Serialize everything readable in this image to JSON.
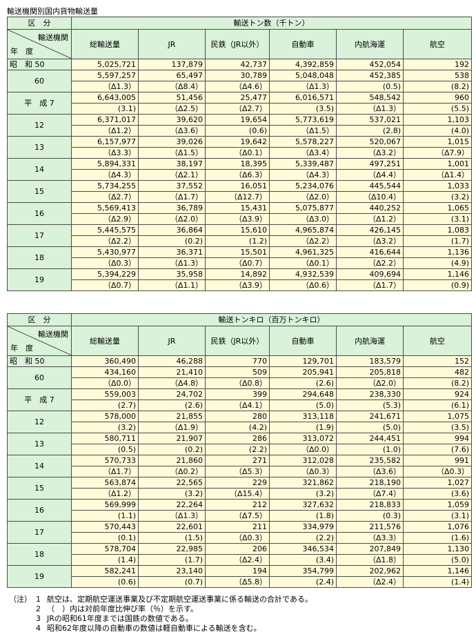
{
  "title": "輸送機関別国内貨物輸送量",
  "corner": {
    "kubun": "区　分",
    "kikan": "輸送機関",
    "nendo": "年　度"
  },
  "columns": [
    "総輸送量",
    "JR",
    "民鉄（JR以外）",
    "自動車",
    "内航海運",
    "航空"
  ],
  "tables": [
    {
      "group_header": "輸送トン数（千トン）",
      "rows": [
        {
          "year": "昭　和 50",
          "values": [
            "5,025,721",
            "137,879",
            "42,737",
            "4,392,859",
            "452,054",
            "192"
          ]
        },
        {
          "year": "60",
          "values": [
            "5,597,257",
            "65,497",
            "30,789",
            "5,048,048",
            "452,385",
            "538"
          ],
          "changes": [
            "（Δ1.3）",
            "（Δ8.4）",
            "（Δ4.6）",
            "（Δ1.3）",
            "(0.5)",
            "(8.2)"
          ]
        },
        {
          "year": "平　成 7",
          "values": [
            "6,643,005",
            "51,456",
            "25,477",
            "6,016,571",
            "548,542",
            "960"
          ],
          "changes": [
            "(3.1)",
            "（Δ2.5）",
            "（Δ2.7）",
            "(3.5)",
            "（Δ1.3）",
            "(5.5)"
          ]
        },
        {
          "year": "12",
          "values": [
            "6,371,017",
            "39,620",
            "19,654",
            "5,773,619",
            "537,021",
            "1,103"
          ],
          "changes": [
            "（Δ1.2）",
            "（Δ3.6）",
            "(0.6)",
            "（Δ1.5）",
            "(2.8)",
            "(4.0)"
          ]
        },
        {
          "year": "13",
          "values": [
            "6,157,977",
            "39,026",
            "19,642",
            "5,578,227",
            "520,067",
            "1,015"
          ],
          "changes": [
            "（Δ3.3）",
            "（Δ1.5）",
            "（Δ0.1）",
            "（Δ3.4）",
            "（Δ3.2）",
            "（Δ7.9）"
          ]
        },
        {
          "year": "14",
          "values": [
            "5,894,331",
            "38,197",
            "18,395",
            "5,339,487",
            "497,251",
            "1,001"
          ],
          "changes": [
            "（Δ4.3）",
            "（Δ2.1）",
            "（Δ6.3）",
            "（Δ4.3）",
            "（Δ4.4）",
            "（Δ1.4）"
          ]
        },
        {
          "year": "15",
          "values": [
            "5,734,255",
            "37,552",
            "16,051",
            "5,234,076",
            "445,544",
            "1,033"
          ],
          "changes": [
            "（Δ2.7）",
            "（Δ1.7）",
            "（Δ12.7）",
            "（Δ2.0）",
            "（Δ10.4）",
            "(3.2)"
          ]
        },
        {
          "year": "16",
          "values": [
            "5,569,413",
            "36,789",
            "15,431",
            "5,075,877",
            "440,252",
            "1,065"
          ],
          "changes": [
            "（Δ2.9）",
            "（Δ2.0）",
            "（Δ3.9）",
            "（Δ3.0）",
            "（Δ1.2）",
            "(3.1)"
          ]
        },
        {
          "year": "17",
          "values": [
            "5,445,575",
            "36,864",
            "15,610",
            "4,965,874",
            "426,145",
            "1,083"
          ],
          "changes": [
            "（Δ2.2）",
            "(0.2)",
            "(1.2)",
            "（Δ2.2）",
            "（Δ3.2）",
            "(1.7)"
          ]
        },
        {
          "year": "18",
          "values": [
            "5,430,977",
            "36,371",
            "15,501",
            "4,961,325",
            "416,644",
            "1,136"
          ],
          "changes": [
            "（Δ0.3）",
            "（Δ1.3）",
            "（Δ0.7）",
            "（Δ0.1）",
            "（Δ2.2）",
            "(4.9)"
          ]
        },
        {
          "year": "19",
          "values": [
            "5,394,229",
            "35,958",
            "14,892",
            "4,932,539",
            "409,694",
            "1,146"
          ],
          "changes": [
            "（Δ0.7）",
            "（Δ1.1）",
            "（Δ3.9）",
            "（Δ0.6）",
            "（Δ1.7）",
            "(0.9)"
          ]
        }
      ]
    },
    {
      "group_header": "輸送トンキロ（百万トンキロ）",
      "rows": [
        {
          "year": "昭　和 50",
          "values": [
            "360,490",
            "46,288",
            "770",
            "129,701",
            "183,579",
            "152"
          ]
        },
        {
          "year": "60",
          "values": [
            "434,160",
            "21,410",
            "509",
            "205,941",
            "205,818",
            "482"
          ],
          "changes": [
            "（Δ0.0）",
            "（Δ4.8）",
            "（Δ0.8）",
            "(2.6)",
            "（Δ2.0）",
            "(8.2)"
          ]
        },
        {
          "year": "平　成 7",
          "values": [
            "559,003",
            "24,702",
            "399",
            "294,648",
            "238,330",
            "924"
          ],
          "changes": [
            "(2.7)",
            "(2.6)",
            "（Δ4.1）",
            "(5.0)",
            "(5.3)",
            "(6.1)"
          ]
        },
        {
          "year": "12",
          "values": [
            "578,000",
            "21,855",
            "280",
            "313,118",
            "241,671",
            "1,075"
          ],
          "changes": [
            "(3.2)",
            "（Δ1.9）",
            "(4.2)",
            "(1.9)",
            "(5.0)",
            "(3.5)"
          ]
        },
        {
          "year": "13",
          "values": [
            "580,711",
            "21,907",
            "286",
            "313,072",
            "244,451",
            "994"
          ],
          "changes": [
            "(0.5)",
            "(0.2)",
            "(2.2)",
            "（Δ0.0）",
            "(1.0)",
            "(7.6)"
          ]
        },
        {
          "year": "14",
          "values": [
            "570,733",
            "21,860",
            "271",
            "312,028",
            "235,582",
            "991"
          ],
          "changes": [
            "（Δ1.7）",
            "（Δ0.2）",
            "（Δ5.3）",
            "（Δ0.3）",
            "（Δ3.6）",
            "（Δ0.3）"
          ]
        },
        {
          "year": "15",
          "values": [
            "563,874",
            "22,565",
            "229",
            "321,862",
            "218,190",
            "1,027"
          ],
          "changes": [
            "（Δ1.2）",
            "(3.2)",
            "（Δ15.4）",
            "(3.2)",
            "（Δ7.4）",
            "(3.6)"
          ]
        },
        {
          "year": "16",
          "values": [
            "569,999",
            "22,264",
            "212",
            "327,632",
            "218,833",
            "1,059"
          ],
          "changes": [
            "(1.1)",
            "（Δ1.3）",
            "（Δ7.5）",
            "(1.8)",
            "(0.3)",
            "(3.1)"
          ]
        },
        {
          "year": "17",
          "values": [
            "570,443",
            "22,601",
            "211",
            "334,979",
            "211,576",
            "1,076"
          ],
          "changes": [
            "(0.1)",
            "(1.5)",
            "（Δ0.3）",
            "(2.2)",
            "（Δ3.3）",
            "(1.6)"
          ]
        },
        {
          "year": "18",
          "values": [
            "578,704",
            "22,985",
            "206",
            "346,534",
            "207,849",
            "1,130"
          ],
          "changes": [
            "(1.4)",
            "(1.7)",
            "（Δ2.4）",
            "(3.4)",
            "（Δ1.8）",
            "(5.0)"
          ]
        },
        {
          "year": "19",
          "values": [
            "582,241",
            "23,140",
            "194",
            "354,799",
            "202,962",
            "1,146"
          ],
          "changes": [
            "(0.6)",
            "(0.7)",
            "（Δ5.8）",
            "(2.4)",
            "（Δ2.4）",
            "(1.4)"
          ]
        }
      ]
    }
  ],
  "notes": [
    {
      "prefix": "（注）",
      "num": "1",
      "text": "航空は、定期航空運送事業及び不定期航空運送事業に係る輸送の合計である。"
    },
    {
      "prefix": "",
      "num": "2",
      "text": "（　）内は対前年度比伸び率（％）を示す。"
    },
    {
      "prefix": "",
      "num": "3",
      "text": "JRの昭和61年度までは国鉄の数値である。"
    },
    {
      "prefix": "",
      "num": "4",
      "text": "昭和62年度以降の自動車の数値は軽自動車による輸送を含む。"
    }
  ]
}
